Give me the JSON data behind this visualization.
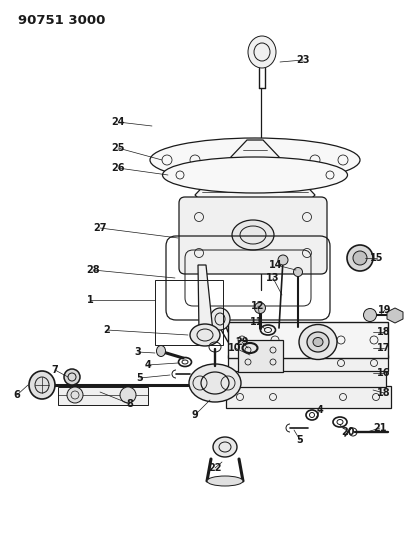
{
  "title": "90751 3000",
  "bg_color": "#ffffff",
  "line_color": "#1a1a1a",
  "gray_color": "#888888",
  "light_gray": "#cccccc",
  "title_fontsize": 9.5,
  "label_fontsize": 7,
  "figsize": [
    4.04,
    5.33
  ],
  "dpi": 100
}
